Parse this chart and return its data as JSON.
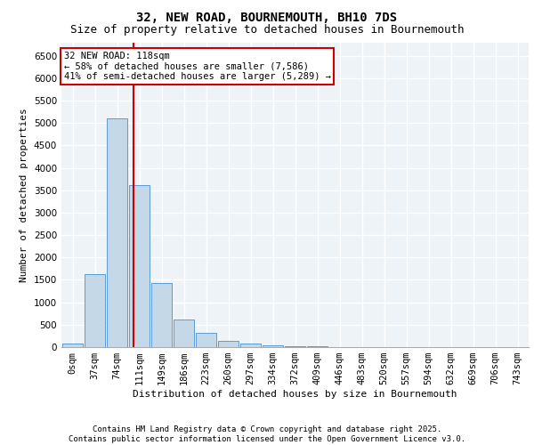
{
  "title1": "32, NEW ROAD, BOURNEMOUTH, BH10 7DS",
  "title2": "Size of property relative to detached houses in Bournemouth",
  "xlabel": "Distribution of detached houses by size in Bournemouth",
  "ylabel": "Number of detached properties",
  "categories": [
    "0sqm",
    "37sqm",
    "74sqm",
    "111sqm",
    "149sqm",
    "186sqm",
    "223sqm",
    "260sqm",
    "297sqm",
    "334sqm",
    "372sqm",
    "409sqm",
    "446sqm",
    "483sqm",
    "520sqm",
    "557sqm",
    "594sqm",
    "632sqm",
    "669sqm",
    "706sqm",
    "743sqm"
  ],
  "bar_values": [
    75,
    1620,
    5100,
    3620,
    1420,
    620,
    310,
    145,
    80,
    45,
    20,
    10,
    5,
    0,
    0,
    0,
    0,
    0,
    0,
    0,
    0
  ],
  "bar_color": "#c5d8e8",
  "bar_edge_color": "#5b9bd5",
  "vline_color": "#cc0000",
  "annotation_box_text": "32 NEW ROAD: 118sqm\n← 58% of detached houses are smaller (7,586)\n41% of semi-detached houses are larger (5,289) →",
  "annotation_box_color": "#cc0000",
  "ylim": [
    0,
    6800
  ],
  "yticks": [
    0,
    500,
    1000,
    1500,
    2000,
    2500,
    3000,
    3500,
    4000,
    4500,
    5000,
    5500,
    6000,
    6500
  ],
  "footnote": "Contains HM Land Registry data © Crown copyright and database right 2025.\nContains public sector information licensed under the Open Government Licence v3.0.",
  "background_color": "#eef3f8",
  "grid_color": "#ffffff",
  "title1_fontsize": 10,
  "title2_fontsize": 9,
  "axis_label_fontsize": 8,
  "tick_fontsize": 7.5,
  "footnote_fontsize": 6.5,
  "annot_fontsize": 7.5
}
